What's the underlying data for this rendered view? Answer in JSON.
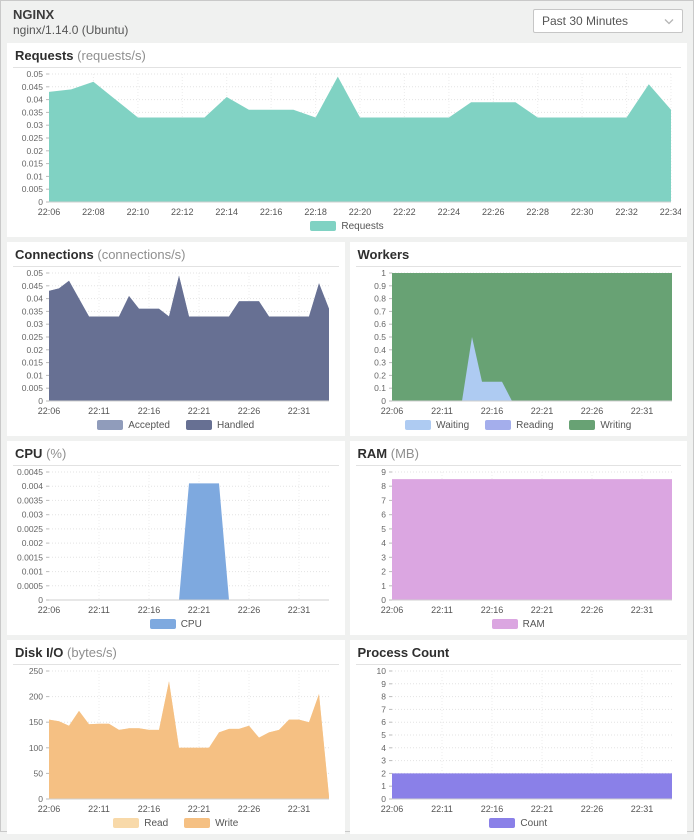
{
  "header": {
    "title": "NGINX",
    "subtitle": "nginx/1.14.0 (Ubuntu)",
    "time_range": "Past 30 Minutes"
  },
  "colors": {
    "page_bg": "#f0f1f0",
    "card_bg": "#ffffff",
    "grid_line": "#e3e3e3",
    "axis_text": "#666666",
    "title_text": "#2e2e2e",
    "unit_text": "#8f8f8f"
  },
  "chart_data": [
    {
      "id": "requests",
      "type": "area",
      "title": "Requests",
      "unit": "(requests/s)",
      "x_range": [
        "22:06",
        "22:34"
      ],
      "x_ticks": [
        "22:06",
        "22:08",
        "22:10",
        "22:12",
        "22:14",
        "22:16",
        "22:18",
        "22:20",
        "22:22",
        "22:24",
        "22:26",
        "22:28",
        "22:30",
        "22:32",
        "22:34"
      ],
      "ylim": [
        0,
        0.05
      ],
      "ytick_step": 0.005,
      "grid": true,
      "legend_position": "bottom",
      "series": [
        {
          "name": "Requests",
          "color": "#80d2c3",
          "z": 1,
          "values": [
            0.043,
            0.044,
            0.047,
            0.04,
            0.033,
            0.033,
            0.033,
            0.033,
            0.041,
            0.036,
            0.036,
            0.036,
            0.033,
            0.049,
            0.033,
            0.033,
            0.033,
            0.033,
            0.033,
            0.039,
            0.039,
            0.039,
            0.033,
            0.033,
            0.033,
            0.033,
            0.033,
            0.046,
            0.036
          ]
        }
      ],
      "legend": [
        {
          "label": "Requests",
          "color": "#80d2c3"
        }
      ]
    },
    {
      "id": "connections",
      "type": "area",
      "title": "Connections",
      "unit": "(connections/s)",
      "x_range": [
        "22:06",
        "22:34"
      ],
      "x_ticks": [
        "22:06",
        "22:11",
        "22:16",
        "22:21",
        "22:26",
        "22:31"
      ],
      "ylim": [
        0,
        0.05
      ],
      "ytick_step": 0.005,
      "grid": true,
      "legend_position": "bottom",
      "series": [
        {
          "name": "Accepted",
          "color": "#909cbb",
          "z": 1,
          "values": [
            0.043,
            0.044,
            0.047,
            0.04,
            0.033,
            0.033,
            0.033,
            0.033,
            0.041,
            0.036,
            0.036,
            0.036,
            0.033,
            0.049,
            0.033,
            0.033,
            0.033,
            0.033,
            0.033,
            0.039,
            0.039,
            0.039,
            0.033,
            0.033,
            0.033,
            0.033,
            0.033,
            0.046,
            0.036
          ]
        },
        {
          "name": "Handled",
          "color": "#677093",
          "z": 2,
          "values": [
            0.043,
            0.044,
            0.047,
            0.04,
            0.033,
            0.033,
            0.033,
            0.033,
            0.041,
            0.036,
            0.036,
            0.036,
            0.033,
            0.049,
            0.033,
            0.033,
            0.033,
            0.033,
            0.033,
            0.039,
            0.039,
            0.039,
            0.033,
            0.033,
            0.033,
            0.033,
            0.033,
            0.046,
            0.036
          ]
        }
      ],
      "legend": [
        {
          "label": "Accepted",
          "color": "#909cbb"
        },
        {
          "label": "Handled",
          "color": "#677093"
        }
      ]
    },
    {
      "id": "workers",
      "type": "area",
      "title": "Workers",
      "unit": "",
      "x_range": [
        "22:06",
        "22:34"
      ],
      "x_ticks": [
        "22:06",
        "22:11",
        "22:16",
        "22:21",
        "22:26",
        "22:31"
      ],
      "ylim": [
        0,
        1
      ],
      "ytick_step": 0.1,
      "grid": true,
      "legend_position": "bottom",
      "series": [
        {
          "name": "Writing",
          "color": "#68a274",
          "z": 1,
          "values": [
            1,
            1,
            1,
            1,
            1,
            1,
            1,
            1,
            1,
            1,
            1,
            1,
            1,
            1,
            1,
            1,
            1,
            1,
            1,
            1,
            1,
            1,
            1,
            1,
            1,
            1,
            1,
            1,
            1
          ]
        },
        {
          "name": "Reading",
          "color": "#a4aeec",
          "z": 2,
          "values": [
            0,
            0,
            0,
            0,
            0,
            0,
            0,
            0,
            0,
            0,
            0,
            0,
            0,
            0,
            0,
            0,
            0,
            0,
            0,
            0,
            0,
            0,
            0,
            0,
            0,
            0,
            0,
            0,
            0
          ]
        },
        {
          "name": "Waiting",
          "color": "#aecbf2",
          "z": 3,
          "values": [
            0,
            0,
            0,
            0,
            0,
            0,
            0,
            0,
            0.5,
            0.15,
            0.15,
            0.15,
            0,
            0,
            0,
            0,
            0,
            0,
            0,
            0,
            0,
            0,
            0,
            0,
            0,
            0,
            0,
            0,
            0
          ]
        }
      ],
      "legend": [
        {
          "label": "Waiting",
          "color": "#aecbf2"
        },
        {
          "label": "Reading",
          "color": "#a4aeec"
        },
        {
          "label": "Writing",
          "color": "#68a274"
        }
      ]
    },
    {
      "id": "cpu",
      "type": "area",
      "title": "CPU",
      "unit": "(%)",
      "x_range": [
        "22:06",
        "22:34"
      ],
      "x_ticks": [
        "22:06",
        "22:11",
        "22:16",
        "22:21",
        "22:26",
        "22:31"
      ],
      "ylim": [
        0,
        0.0045
      ],
      "ytick_step": 0.0005,
      "grid": true,
      "legend_position": "bottom",
      "series": [
        {
          "name": "CPU",
          "color": "#7ea9df",
          "z": 1,
          "values": [
            0,
            0,
            0,
            0,
            0,
            0,
            0,
            0,
            0,
            0,
            0,
            0,
            0,
            0,
            0.0041,
            0.0041,
            0.0041,
            0.0041,
            0,
            0,
            0,
            0,
            0,
            0,
            0,
            0,
            0,
            0,
            0
          ]
        }
      ],
      "legend": [
        {
          "label": "CPU",
          "color": "#7ea9df"
        }
      ]
    },
    {
      "id": "ram",
      "type": "area",
      "title": "RAM",
      "unit": "(MB)",
      "x_range": [
        "22:06",
        "22:34"
      ],
      "x_ticks": [
        "22:06",
        "22:11",
        "22:16",
        "22:21",
        "22:26",
        "22:31"
      ],
      "ylim": [
        0,
        9
      ],
      "ytick_step": 1,
      "grid": true,
      "legend_position": "bottom",
      "series": [
        {
          "name": "RAM",
          "color": "#dba6e1",
          "z": 1,
          "values": [
            8.5,
            8.5,
            8.5,
            8.5,
            8.5,
            8.5,
            8.5,
            8.5,
            8.5,
            8.5,
            8.5,
            8.5,
            8.5,
            8.5,
            8.5,
            8.5,
            8.5,
            8.5,
            8.5,
            8.5,
            8.5,
            8.5,
            8.5,
            8.5,
            8.5,
            8.5,
            8.5,
            8.5,
            8.5
          ]
        }
      ],
      "legend": [
        {
          "label": "RAM",
          "color": "#dba6e1"
        }
      ]
    },
    {
      "id": "disk_io",
      "type": "area",
      "title": "Disk I/O",
      "unit": "(bytes/s)",
      "x_range": [
        "22:06",
        "22:34"
      ],
      "x_ticks": [
        "22:06",
        "22:11",
        "22:16",
        "22:21",
        "22:26",
        "22:31"
      ],
      "ylim": [
        0,
        250
      ],
      "ytick_step": 50,
      "grid": true,
      "legend_position": "bottom",
      "series": [
        {
          "name": "Read",
          "color": "#f8d9a9",
          "z": 1,
          "values": [
            155,
            152,
            143,
            172,
            146,
            147,
            147,
            135,
            138,
            138,
            135,
            135,
            230,
            100,
            100,
            100,
            100,
            130,
            137,
            137,
            143,
            120,
            130,
            135,
            155,
            155,
            150,
            205,
            5
          ]
        },
        {
          "name": "Write",
          "color": "#f5c083",
          "z": 2,
          "values": [
            155,
            152,
            143,
            172,
            146,
            147,
            147,
            135,
            138,
            138,
            135,
            135,
            230,
            100,
            100,
            100,
            100,
            130,
            137,
            137,
            143,
            120,
            130,
            135,
            155,
            155,
            150,
            205,
            5
          ]
        }
      ],
      "legend": [
        {
          "label": "Read",
          "color": "#f8d9a9"
        },
        {
          "label": "Write",
          "color": "#f5c083"
        }
      ]
    },
    {
      "id": "process_count",
      "type": "area",
      "title": "Process Count",
      "unit": "",
      "x_range": [
        "22:06",
        "22:34"
      ],
      "x_ticks": [
        "22:06",
        "22:11",
        "22:16",
        "22:21",
        "22:26",
        "22:31"
      ],
      "ylim": [
        0,
        10
      ],
      "ytick_step": 1,
      "grid": true,
      "legend_position": "bottom",
      "series": [
        {
          "name": "Count",
          "color": "#8a80e8",
          "z": 1,
          "values": [
            2,
            2,
            2,
            2,
            2,
            2,
            2,
            2,
            2,
            2,
            2,
            2,
            2,
            2,
            2,
            2,
            2,
            2,
            2,
            2,
            2,
            2,
            2,
            2,
            2,
            2,
            2,
            2,
            2
          ]
        }
      ],
      "legend": [
        {
          "label": "Count",
          "color": "#8a80e8"
        }
      ]
    }
  ]
}
